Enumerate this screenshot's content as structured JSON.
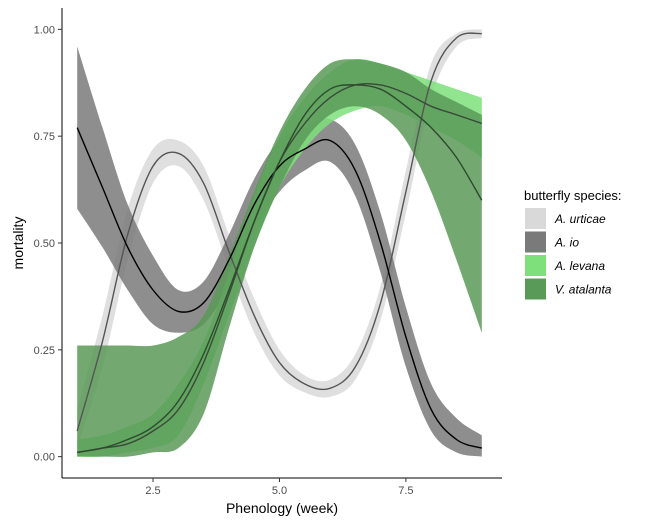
{
  "chart_data": {
    "type": "line",
    "title": "",
    "xlabel": "Phenology (week)",
    "ylabel": "mortality",
    "xlim": [
      0.7,
      9.4
    ],
    "ylim": [
      -0.05,
      1.05
    ],
    "x_ticks": [
      2.5,
      5.0,
      7.5
    ],
    "x_tick_labels": [
      "2.5",
      "5.0",
      "7.5"
    ],
    "y_ticks": [
      0.0,
      0.25,
      0.5,
      0.75,
      1.0
    ],
    "y_tick_labels": [
      "0.00",
      "0.25",
      "0.50",
      "0.75",
      "1.00"
    ],
    "grid": false,
    "legend": {
      "title": "butterfly species:",
      "placement": "right",
      "entries": [
        "A. urticae",
        "A. io",
        "A. levana",
        "V. atalanta"
      ]
    },
    "x": [
      1,
      1.5,
      2,
      2.5,
      3,
      3.5,
      4,
      4.5,
      5,
      5.5,
      6,
      6.5,
      7,
      7.5,
      8,
      8.5,
      9
    ],
    "series": [
      {
        "name": "A. urticae",
        "fill": "#d9d9d9",
        "line": "#555555",
        "values": [
          0.06,
          0.27,
          0.52,
          0.68,
          0.71,
          0.64,
          0.48,
          0.33,
          0.22,
          0.17,
          0.16,
          0.21,
          0.36,
          0.62,
          0.88,
          0.98,
          0.99
        ],
        "lower": [
          0.02,
          0.21,
          0.46,
          0.64,
          0.68,
          0.6,
          0.44,
          0.29,
          0.19,
          0.15,
          0.14,
          0.18,
          0.32,
          0.57,
          0.84,
          0.96,
          0.98
        ],
        "upper": [
          0.11,
          0.33,
          0.58,
          0.72,
          0.74,
          0.68,
          0.52,
          0.37,
          0.25,
          0.19,
          0.18,
          0.24,
          0.4,
          0.67,
          0.92,
          0.99,
          1.0
        ]
      },
      {
        "name": "A. io",
        "fill": "#7a7a7a",
        "line": "#000000",
        "values": [
          0.77,
          0.63,
          0.49,
          0.39,
          0.34,
          0.36,
          0.46,
          0.59,
          0.68,
          0.72,
          0.74,
          0.67,
          0.5,
          0.28,
          0.11,
          0.04,
          0.02
        ],
        "lower": [
          0.58,
          0.49,
          0.39,
          0.31,
          0.29,
          0.31,
          0.4,
          0.53,
          0.62,
          0.67,
          0.69,
          0.61,
          0.43,
          0.21,
          0.06,
          0.01,
          0.0
        ],
        "upper": [
          0.96,
          0.77,
          0.59,
          0.47,
          0.39,
          0.41,
          0.52,
          0.65,
          0.74,
          0.77,
          0.79,
          0.73,
          0.57,
          0.35,
          0.17,
          0.09,
          0.05
        ]
      },
      {
        "name": "A. levana",
        "fill": "#7de07a",
        "line": "#3a4a3a",
        "values": [
          0.01,
          0.02,
          0.03,
          0.06,
          0.11,
          0.22,
          0.38,
          0.55,
          0.69,
          0.78,
          0.84,
          0.87,
          0.87,
          0.85,
          0.82,
          0.8,
          0.78
        ],
        "lower": [
          0.0,
          0.0,
          0.01,
          0.02,
          0.05,
          0.17,
          0.33,
          0.49,
          0.63,
          0.72,
          0.78,
          0.81,
          0.82,
          0.8,
          0.77,
          0.74,
          0.7
        ],
        "upper": [
          0.04,
          0.05,
          0.07,
          0.1,
          0.17,
          0.27,
          0.43,
          0.61,
          0.75,
          0.84,
          0.9,
          0.93,
          0.92,
          0.9,
          0.88,
          0.86,
          0.84
        ]
      },
      {
        "name": "V. atalanta",
        "fill": "#5a9a58",
        "line": "#2e4a2e",
        "values": [
          0.01,
          0.02,
          0.04,
          0.07,
          0.13,
          0.24,
          0.39,
          0.55,
          0.69,
          0.8,
          0.86,
          0.87,
          0.86,
          0.82,
          0.77,
          0.7,
          0.6
        ],
        "lower": [
          0.0,
          0.0,
          0.0,
          0.01,
          0.02,
          0.1,
          0.3,
          0.49,
          0.63,
          0.74,
          0.8,
          0.82,
          0.8,
          0.74,
          0.62,
          0.46,
          0.29
        ],
        "upper": [
          0.26,
          0.26,
          0.26,
          0.26,
          0.28,
          0.33,
          0.47,
          0.62,
          0.76,
          0.86,
          0.92,
          0.93,
          0.92,
          0.9,
          0.86,
          0.83,
          0.8
        ]
      }
    ]
  }
}
